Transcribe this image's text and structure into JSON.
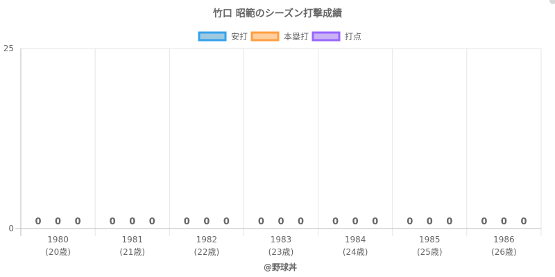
{
  "chart_data": {
    "type": "bar",
    "title": "竹口 昭範のシーズン打撃成績",
    "categories": [
      "1980",
      "1981",
      "1982",
      "1983",
      "1984",
      "1985",
      "1986"
    ],
    "category_sublabels": [
      "(20歳)",
      "(21歳)",
      "(22歳)",
      "(23歳)",
      "(24歳)",
      "(25歳)",
      "(26歳)"
    ],
    "series": [
      {
        "name": "安打",
        "values": [
          0,
          0,
          0,
          0,
          0,
          0,
          0
        ],
        "fill": "#9ecae1",
        "stroke": "#36a2eb"
      },
      {
        "name": "本塁打",
        "values": [
          0,
          0,
          0,
          0,
          0,
          0,
          0
        ],
        "fill": "#ffcf9f",
        "stroke": "#ff9f40"
      },
      {
        "name": "打点",
        "values": [
          0,
          0,
          0,
          0,
          0,
          0,
          0
        ],
        "fill": "#c9b3f5",
        "stroke": "#9966ff"
      }
    ],
    "ylim": [
      0,
      25
    ],
    "yticks": [
      "0",
      "25"
    ],
    "legend_position": "top",
    "grid": true,
    "show_data_labels": true,
    "credit": "@野球丼"
  }
}
